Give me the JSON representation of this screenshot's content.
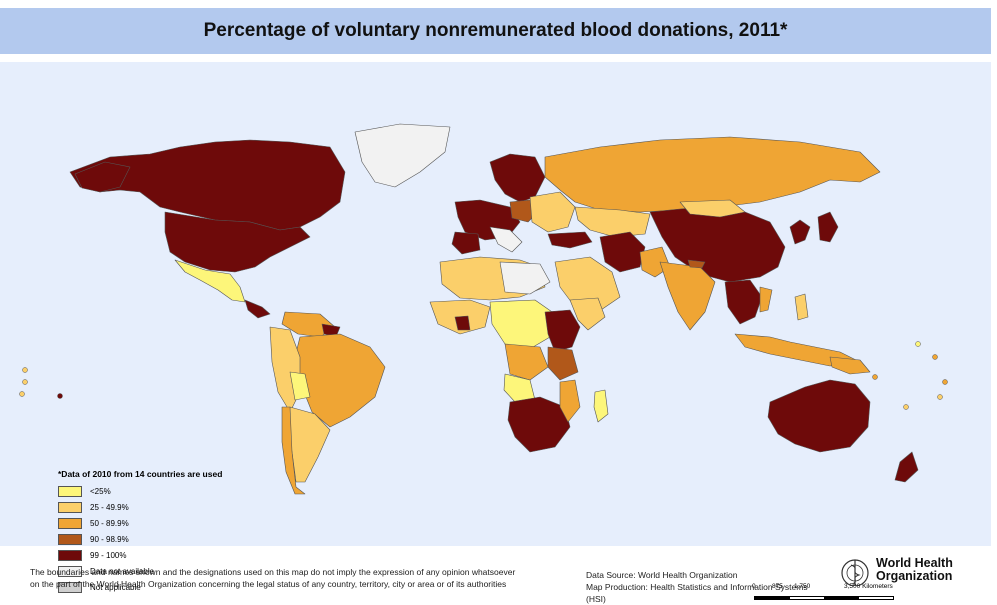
{
  "title": "Percentage of voluntary nonremunerated blood donations, 2011*",
  "legend": {
    "note": "*Data of 2010 from 14 countries are used",
    "items": [
      {
        "label": "<25%",
        "color": "#fdf67a"
      },
      {
        "label": "25 - 49.9%",
        "color": "#fbcf6a"
      },
      {
        "label": "50 - 89.9%",
        "color": "#efa534"
      },
      {
        "label": "90 - 98.9%",
        "color": "#b1581a"
      },
      {
        "label": "99 - 100%",
        "color": "#6e0a0a"
      },
      {
        "label": "Data not available",
        "color": "#f2f2f2"
      },
      {
        "label": "Not applicable",
        "color": "#cfcfcf"
      }
    ]
  },
  "colors": {
    "ocean": "#e6eefc",
    "title_bar": "#b3c9ee",
    "border": "#555555"
  },
  "scale": {
    "labels": [
      "0",
      "875",
      "1,750",
      "3,500 Kilometers"
    ]
  },
  "footer": {
    "disclaimer": "The boundaries and names shown and the designations used on this map do not imply the expression of any opinion whatsoever",
    "disclaimer_line2": "on the part of the World Health Organization concerning the legal status of any country, territory, city or area or of its authorities",
    "source": "Data Source: World Health Organization",
    "source_line2": "Map Production: Health Statistics and Information Systems (HSI)"
  },
  "logo": {
    "line1": "World Health",
    "line2": "Organization"
  }
}
